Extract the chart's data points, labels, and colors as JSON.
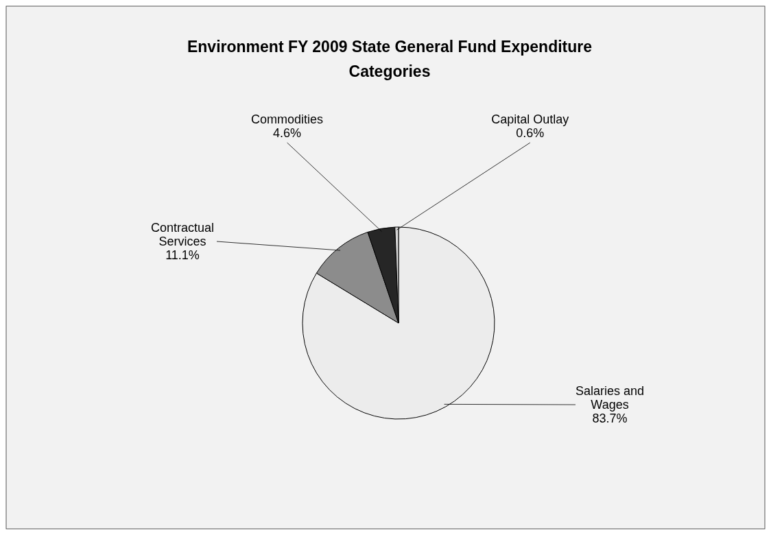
{
  "chart_data": {
    "type": "pie",
    "title": "Environment FY 2009 State General Fund Expenditure Categories",
    "categories": [
      "Salaries and Wages",
      "Contractual Services",
      "Commodities",
      "Capital Outlay"
    ],
    "values": [
      83.7,
      11.1,
      4.6,
      0.6
    ],
    "colors": [
      "#ececec",
      "#8c8c8c",
      "#262626",
      "#d4d4d4"
    ],
    "value_labels": [
      "83.7%",
      "11.1%",
      "4.6%",
      "0.6%"
    ]
  }
}
